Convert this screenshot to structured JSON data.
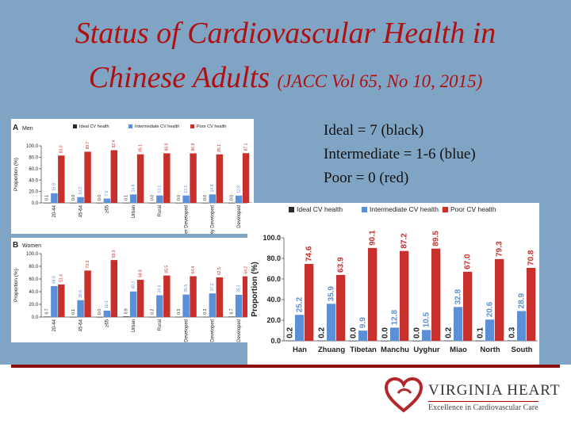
{
  "slide": {
    "title_line1": "Status of Cardiovascular Health in",
    "title_line2_main": "Chinese Adults",
    "title_line2_cite": "(JACC Vol 65, No 10, 2015)",
    "legend_notes": [
      "Ideal = 7 (black)",
      "Intermediate = 1-6 (blue)",
      "Poor = 0 (red)"
    ],
    "brand_name": "VIRGINIA HEART",
    "brand_tagline": "Excellence in Cardiovascular Care",
    "colors": {
      "ideal": "#2a2a2a",
      "intermediate": "#5b8fd6",
      "poor": "#c7302b",
      "title": "#b01010",
      "background": "#7fa4c4"
    }
  },
  "chart_data": [
    {
      "type": "bar",
      "panel": "A",
      "subtitle": "Men",
      "ylabel": "Proportion (%)",
      "ylim": [
        0,
        100
      ],
      "yticks": [
        "0.0",
        "20.0",
        "40.0",
        "60.0",
        "80.0",
        "100.0"
      ],
      "legend": [
        "Ideal CV health",
        "Intermediate CV health",
        "Poor CV health"
      ],
      "legend_position": "top",
      "categories": [
        "20-44",
        "45-64",
        "≥65",
        "Urban",
        "Rural",
        "Under Developed",
        "Intermediately Developed",
        "Developed"
      ],
      "series": [
        {
          "name": "Ideal CV health",
          "values": [
            0.1,
            0.0,
            0.0,
            0.1,
            0.0,
            0.0,
            0.0,
            0.0
          ],
          "labels": [
            "0.1",
            "0.0",
            "0.0",
            "0.1",
            "0.0",
            "0.0",
            "0.0",
            "0.0"
          ]
        },
        {
          "name": "Intermediate CV health",
          "values": [
            16.9,
            10.2,
            7.6,
            14.8,
            13.1,
            13.1,
            14.8,
            12.8
          ],
          "labels": [
            "16.9",
            "10.2",
            "7.6",
            "14.8",
            "13.1",
            "13.1",
            "14.8",
            "12.8"
          ]
        },
        {
          "name": "Poor CV health",
          "values": [
            83.0,
            89.7,
            92.4,
            85.1,
            86.9,
            86.8,
            85.1,
            87.1
          ],
          "labels": [
            "83.0",
            "89.7",
            "92.4",
            "85.1",
            "86.9",
            "86.8",
            "85.1",
            "87.1"
          ]
        }
      ]
    },
    {
      "type": "bar",
      "panel": "B",
      "subtitle": "Women",
      "ylabel": "Proportion (%)",
      "ylim": [
        0,
        100
      ],
      "yticks": [
        "0.0",
        "20.0",
        "40.0",
        "60.0",
        "80.0",
        "100.0"
      ],
      "categories": [
        "20-44",
        "45-64",
        "≥65",
        "Urban",
        "Rural",
        "Under Developed",
        "Intermediately Developed",
        "Developed"
      ],
      "series": [
        {
          "name": "Ideal CV health",
          "values": [
            0.7,
            0.1,
            0.0,
            0.9,
            0.2,
            0.3,
            0.3,
            0.7
          ],
          "labels": [
            "0.7",
            "0.1",
            "0.0",
            "0.9",
            "0.2",
            "0.3",
            "0.3",
            "0.7"
          ]
        },
        {
          "name": "Intermediate CV health",
          "values": [
            48.8,
            26.6,
            10.1,
            40.3,
            34.3,
            35.5,
            37.2,
            35.1
          ],
          "labels": [
            "48.8",
            "26.6",
            "10.1",
            "40.3",
            "34.3",
            "35.5",
            "37.2",
            "35.1"
          ]
        },
        {
          "name": "Poor CV health",
          "values": [
            51.4,
            73.3,
            89.9,
            58.8,
            65.5,
            64.4,
            62.5,
            64.2
          ],
          "labels": [
            "51.4",
            "73.3",
            "89.9",
            "58.8",
            "65.5",
            "64.4",
            "62.5",
            "64.2"
          ]
        }
      ]
    },
    {
      "type": "bar",
      "panel": "C",
      "ylabel": "Proportion (%)",
      "ylim": [
        0,
        100
      ],
      "yticks": [
        "0.0",
        "20.0",
        "40.0",
        "60.0",
        "80.0",
        "100.0"
      ],
      "legend": [
        "Ideal CV health",
        "Intermediate CV health",
        "Poor CV health"
      ],
      "legend_position": "top",
      "categories": [
        "Han",
        "Zhuang",
        "Tibetan",
        "Manchu",
        "Uyghur",
        "Miao",
        "North",
        "South"
      ],
      "series": [
        {
          "name": "Ideal CV health",
          "values": [
            0.2,
            0.2,
            0.0,
            0.0,
            0.0,
            0.2,
            0.1,
            0.3
          ],
          "labels": [
            "0.2",
            "0.2",
            "0.0",
            "0.0",
            "0.0",
            "0.2",
            "0.1",
            "0.3"
          ]
        },
        {
          "name": "Intermediate CV health",
          "values": [
            25.2,
            35.9,
            9.9,
            12.8,
            10.5,
            32.8,
            20.6,
            28.9
          ],
          "labels": [
            "25.2",
            "35.9",
            "9.9",
            "12.8",
            "10.5",
            "32.8",
            "20.6",
            "28.9"
          ]
        },
        {
          "name": "Poor CV health",
          "values": [
            74.6,
            63.9,
            90.1,
            87.2,
            89.5,
            67.0,
            79.3,
            70.8
          ],
          "labels": [
            "74.6",
            "63.9",
            "90.1",
            "87.2",
            "89.5",
            "67.0",
            "79.3",
            "70.8"
          ]
        }
      ]
    }
  ]
}
